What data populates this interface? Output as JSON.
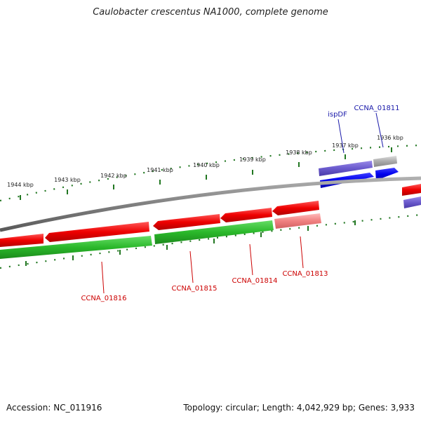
{
  "title": "Caulobacter crescentus NA1000, complete genome",
  "footer": {
    "accession": "Accession: NC_011916",
    "summary": "Topology: circular; Length: 4,042,929 bp; Genes: 3,933"
  },
  "colors": {
    "forward_gene": "#0000ee",
    "forward_gene_light": "#6a5acd",
    "reverse_gene": "#ee0000",
    "reverse_cds": "#2ab82a",
    "pseudo": "#aaaaaa",
    "ruler": "#227722",
    "backbone": "#808080",
    "blue_label": "#1a1aaa",
    "red_label": "#cc0000"
  },
  "ticks": [
    {
      "label": "1944 kbp"
    },
    {
      "label": "1943 kbp"
    },
    {
      "label": "1942 kbp"
    },
    {
      "label": "1941 kbp"
    },
    {
      "label": "1940 kbp"
    },
    {
      "label": "1939 kbp"
    },
    {
      "label": "1938 kbp"
    },
    {
      "label": "1937 kbp"
    },
    {
      "label": "1936 kbp"
    }
  ],
  "genes": {
    "ispDF": "ispDF",
    "ccna01811": "CCNA_01811",
    "ccna01816": "CCNA_01816",
    "ccna01815": "CCNA_01815",
    "ccna01814": "CCNA_01814",
    "ccna01813": "CCNA_01813"
  }
}
